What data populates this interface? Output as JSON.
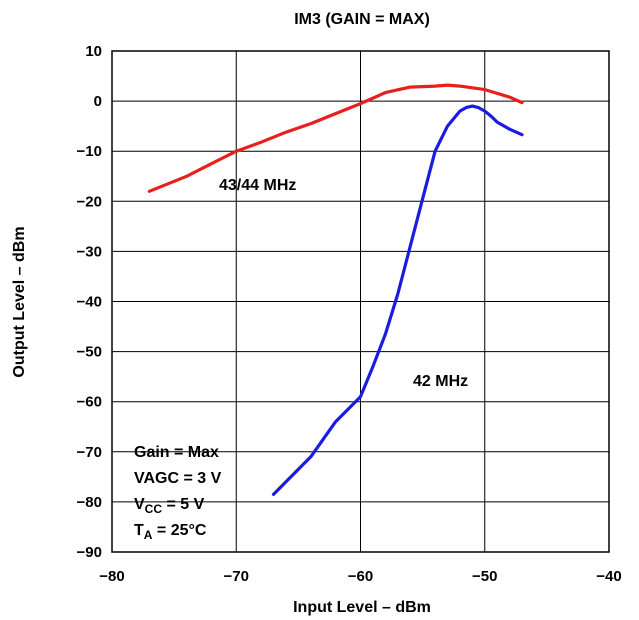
{
  "chart_data": {
    "type": "line",
    "title": "IM3 (GAIN = MAX)",
    "xlabel": "Input Level – dBm",
    "ylabel": "Output Level – dBm",
    "xlim": [
      -80,
      -40
    ],
    "ylim": [
      -90,
      10
    ],
    "xticks": [
      -80,
      -70,
      -60,
      -50,
      -40
    ],
    "xtick_labels": [
      "−80",
      "−70",
      "−60",
      "−50",
      "−40"
    ],
    "yticks": [
      10,
      0,
      -10,
      -20,
      -30,
      -40,
      -50,
      -60,
      -70,
      -80,
      -90
    ],
    "ytick_labels": [
      "10",
      "0",
      "−10",
      "−20",
      "−30",
      "−40",
      "−50",
      "−60",
      "−70",
      "−80",
      "−90"
    ],
    "grid": true,
    "series": [
      {
        "name": "43/44 MHz",
        "color": "#e8201c",
        "x": [
          -77,
          -74,
          -72,
          -70,
          -68,
          -66,
          -64,
          -62,
          -60,
          -58,
          -56,
          -54,
          -53,
          -52,
          -50,
          -48,
          -47
        ],
        "y": [
          -18,
          -15,
          -12.5,
          -10,
          -8.2,
          -6.2,
          -4.5,
          -2.5,
          -0.5,
          1.7,
          2.8,
          3,
          3.2,
          3,
          2.3,
          0.8,
          -0.3
        ]
      },
      {
        "name": "42 MHz",
        "color": "#1c1ce0",
        "x": [
          -67,
          -66,
          -64,
          -62,
          -60,
          -59,
          -58,
          -57,
          -56,
          -55,
          -54,
          -53,
          -52,
          -51.5,
          -51,
          -50.5,
          -50,
          -49.5,
          -49,
          -48,
          -47
        ],
        "y": [
          -78.5,
          -76,
          -71,
          -64,
          -59,
          -53,
          -46.5,
          -38.5,
          -29,
          -19.5,
          -10,
          -5,
          -2,
          -1.3,
          -1,
          -1.3,
          -2,
          -3,
          -4.2,
          -5.6,
          -6.7
        ]
      }
    ],
    "annotations": {
      "series_a_label": "43/44 MHz",
      "series_b_label": "42 MHz",
      "cond_gain": "Gain = Max",
      "cond_vagc": "VAGC = 3 V",
      "cond_vcc_main": "V",
      "cond_vcc_sub": "CC",
      "cond_vcc_rest": " = 5 V",
      "cond_ta_main": "T",
      "cond_ta_sub": "A",
      "cond_ta_rest": " = 25°C"
    }
  }
}
